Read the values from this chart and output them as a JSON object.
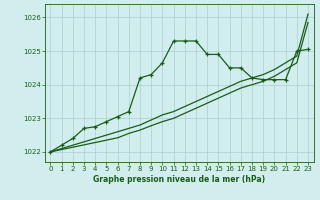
{
  "x": [
    0,
    1,
    2,
    3,
    4,
    5,
    6,
    7,
    8,
    9,
    10,
    11,
    12,
    13,
    14,
    15,
    16,
    17,
    18,
    19,
    20,
    21,
    22,
    23
  ],
  "line_marked": [
    1022.0,
    1022.2,
    1022.4,
    1022.7,
    1022.75,
    1022.9,
    1023.05,
    1023.2,
    1024.2,
    1024.3,
    1024.65,
    1025.3,
    1025.3,
    1025.3,
    1024.9,
    1024.9,
    1024.5,
    1024.5,
    1024.2,
    1024.15,
    1024.15,
    1024.15,
    1025.0,
    1025.05
  ],
  "line_linear1": [
    1022.0,
    1022.07,
    1022.14,
    1022.21,
    1022.28,
    1022.35,
    1022.42,
    1022.55,
    1022.65,
    1022.78,
    1022.9,
    1023.0,
    1023.15,
    1023.3,
    1023.45,
    1023.6,
    1023.75,
    1023.9,
    1024.0,
    1024.1,
    1024.25,
    1024.45,
    1024.65,
    1025.85
  ],
  "line_linear2": [
    1022.0,
    1022.1,
    1022.2,
    1022.3,
    1022.4,
    1022.5,
    1022.6,
    1022.7,
    1022.8,
    1022.95,
    1023.1,
    1023.2,
    1023.35,
    1023.5,
    1023.65,
    1023.8,
    1023.95,
    1024.1,
    1024.2,
    1024.3,
    1024.45,
    1024.65,
    1024.85,
    1026.1
  ],
  "line_color": "#1a5c1a",
  "background_color": "#d2eded",
  "grid_color": "#aacfcf",
  "xlabel": "Graphe pression niveau de la mer (hPa)",
  "ylim": [
    1021.7,
    1026.4
  ],
  "xlim": [
    -0.5,
    23.5
  ],
  "yticks": [
    1022,
    1023,
    1024,
    1025,
    1026
  ],
  "xticks": [
    0,
    1,
    2,
    3,
    4,
    5,
    6,
    7,
    8,
    9,
    10,
    11,
    12,
    13,
    14,
    15,
    16,
    17,
    18,
    19,
    20,
    21,
    22,
    23
  ],
  "marker": "+",
  "markersize": 3.5,
  "linewidth": 0.9
}
